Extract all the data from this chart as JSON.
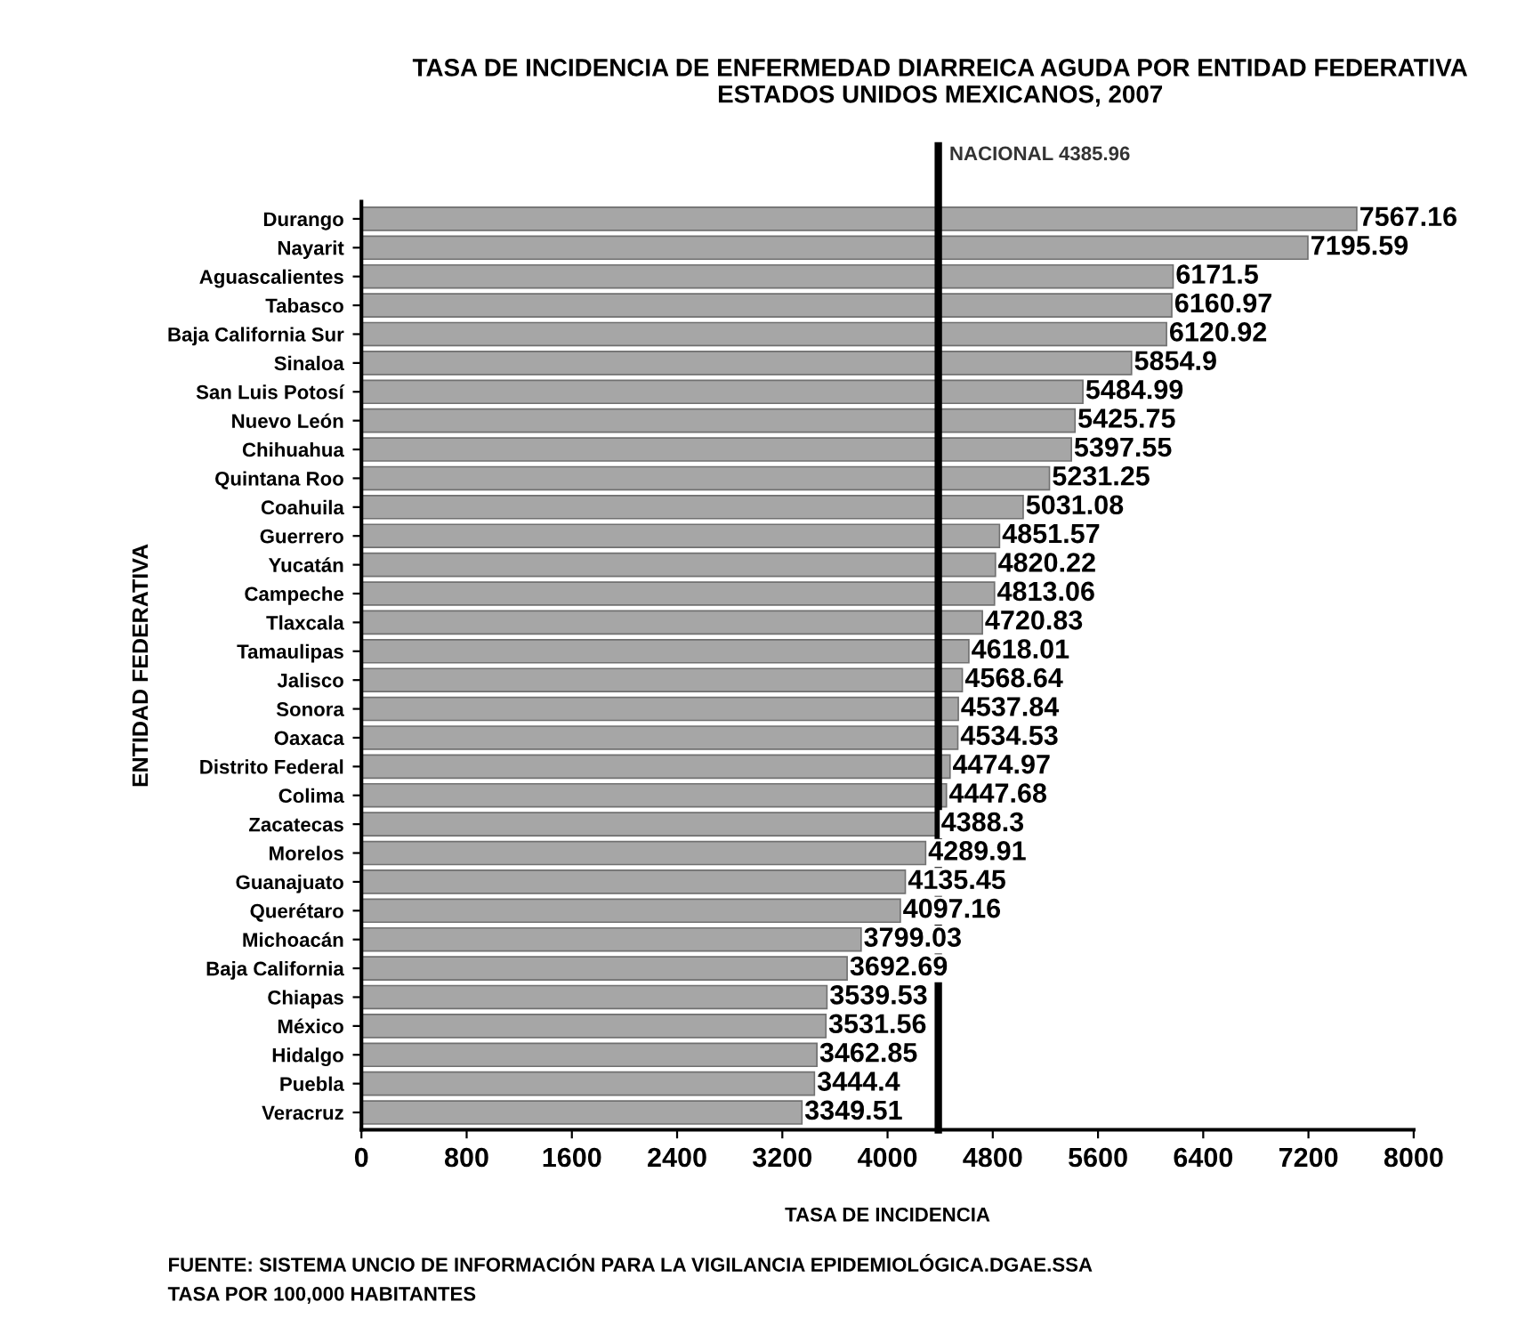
{
  "chart_data": {
    "type": "bar",
    "orientation": "horizontal",
    "title": "TASA DE INCIDENCIA DE ENFERMEDAD DIARREICA AGUDA POR ENTIDAD FEDERATIVA\nESTADOS UNIDOS MEXICANOS, 2007",
    "xlabel": "TASA DE INCIDENCIA",
    "ylabel": "ENTIDAD FEDERATIVA",
    "categories": [
      "Durango",
      "Nayarit",
      "Aguascalientes",
      "Tabasco",
      "Baja California Sur",
      "Sinaloa",
      "San Luis Potosí",
      "Nuevo León",
      "Chihuahua",
      "Quintana Roo",
      "Coahuila",
      "Guerrero",
      "Yucatán",
      "Campeche",
      "Tlaxcala",
      "Tamaulipas",
      "Jalisco",
      "Sonora",
      "Oaxaca",
      "Distrito Federal",
      "Colima",
      "Zacatecas",
      "Morelos",
      "Guanajuato",
      "Querétaro",
      "Michoacán",
      "Baja California",
      "Chiapas",
      "México",
      "Hidalgo",
      "Puebla",
      "Veracruz"
    ],
    "values": [
      7567.16,
      7195.59,
      6171.5,
      6160.97,
      6120.92,
      5854.9,
      5484.99,
      5425.75,
      5397.55,
      5231.25,
      5031.08,
      4851.57,
      4820.22,
      4813.06,
      4720.83,
      4618.01,
      4568.64,
      4537.84,
      4534.53,
      4474.97,
      4447.68,
      4388.3,
      4289.91,
      4135.45,
      4097.16,
      3799.03,
      3692.69,
      3539.53,
      3531.56,
      3462.85,
      3444.4,
      3349.51
    ],
    "color": "#a6a6a6",
    "data_labels": true,
    "xlim": [
      0,
      8000
    ],
    "xticks": [
      0,
      800,
      1600,
      2400,
      3200,
      4000,
      4800,
      5600,
      6400,
      7200,
      8000
    ],
    "ref_lines": [
      {
        "axis": "x",
        "value": 4385.96,
        "label": "NACIONAL 4385.96",
        "color": "#000000"
      }
    ],
    "grid": false,
    "legend": false,
    "annotations": [
      "FUENTE: SISTEMA UNCIO DE INFORMACIÓN PARA LA VIGILANCIA EPIDEMIOLÓGICA.DGAE.SSA",
      "TASA POR 100,000 HABITANTES"
    ]
  }
}
